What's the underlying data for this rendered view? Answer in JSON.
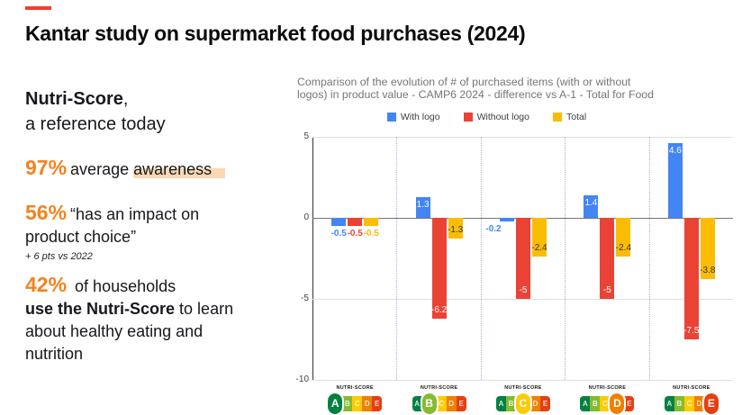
{
  "slide": {
    "title": "Kantar study on supermarket food purchases (2024)",
    "accent_color": "#F5821E"
  },
  "left_panel": {
    "heading": {
      "bold": "Nutri-Score",
      "comma": ",",
      "line2": "a reference today"
    },
    "stat_awareness": {
      "value": "97%",
      "pre": "average ",
      "highlight": "awareness"
    },
    "stat_impact": {
      "value": "56%",
      "line1": "“has an impact on",
      "line2": "product choice”",
      "note": "+ 6 pts vs 2022"
    },
    "stat_households": {
      "value": "42%",
      "l1": " of households",
      "l2_bold": "use the Nutri-Score",
      "l2_rest": " to learn",
      "l3": "about healthy eating and",
      "l4": "nutrition"
    }
  },
  "chart": {
    "title_lines": [
      "Comparison of the evolution of # of purchased items (with or without",
      "logos) in product value - CAMP6 2024 - difference vs A-1 - Total for Food"
    ],
    "title_color": "#757575"
  },
  "chart_data": {
    "type": "bar",
    "title": "Comparison of the evolution of # of purchased items (with or without logos) in product value - CAMP6 2024 - difference vs A-1 - Total for Food",
    "categories": [
      "A",
      "B",
      "C",
      "D",
      "E"
    ],
    "series": [
      {
        "name": "With logo",
        "color": "#4285F4",
        "values": [
          -0.5,
          1.3,
          -0.2,
          1.4,
          4.6
        ]
      },
      {
        "name": "Without logo",
        "color": "#EA4335",
        "values": [
          -0.5,
          -6.2,
          -5,
          -5,
          -7.5
        ]
      },
      {
        "name": "Total",
        "color": "#FBBC04",
        "values": [
          -0.5,
          -1.3,
          -2.4,
          -2.4,
          -3.8
        ]
      }
    ],
    "ylim": [
      -10,
      5
    ],
    "y_ticks": [
      5,
      0,
      -5,
      -10
    ],
    "grid": true,
    "legend_position": "top",
    "x_axis_label_type": "nutri-score-logo",
    "nutri_score": {
      "label": "NUTRI-SCORE",
      "letters": [
        "A",
        "B",
        "C",
        "D",
        "E"
      ],
      "letter_colors": {
        "A": "#038141",
        "B": "#85BB2F",
        "C": "#FECB02",
        "D": "#EE8100",
        "E": "#E63E11"
      },
      "active_per_group": [
        "A",
        "B",
        "C",
        "D",
        "E"
      ]
    }
  }
}
